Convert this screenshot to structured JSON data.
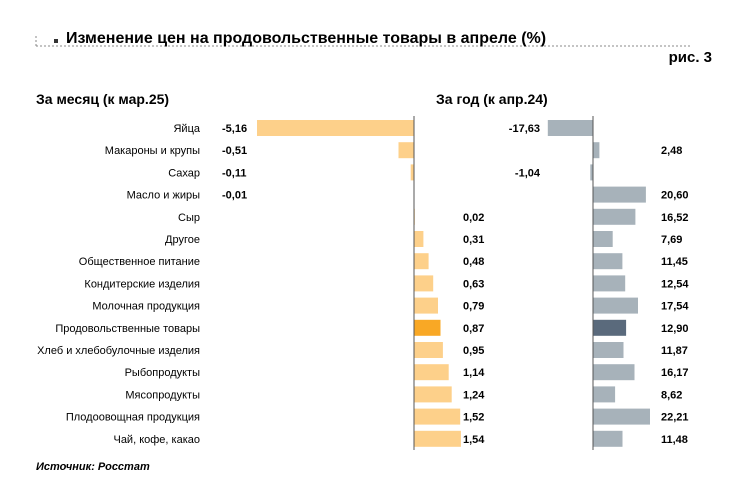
{
  "header": {
    "title": "Изменение цен на продовольственные товары в апреле (%)",
    "figure_label": "рис. 3"
  },
  "source": "Источник: Росстат",
  "colors": {
    "month_bar": "#fdd08a",
    "month_highlight": "#f9a825",
    "year_bar": "#a7b2ba",
    "year_highlight": "#5a6a7c",
    "axis": "#555555"
  },
  "chart_data": [
    {
      "type": "bar",
      "orientation": "horizontal",
      "title": "За месяц (к мар.25)",
      "categories": [
        "Яйца",
        "Макароны и крупы",
        "Сахар",
        "Масло и жиры",
        "Сыр",
        "Другое",
        "Общественное питание",
        "Кондитерские изделия",
        "Молочная продукция",
        "Продовольственные товары",
        "Хлеб и хлебобулочные изделия",
        "Рыбопродукты",
        "Мясопродукты",
        "Плодоовощная продукция",
        "Чай, кофе, какао"
      ],
      "values": [
        -5.16,
        -0.51,
        -0.11,
        -0.01,
        0.02,
        0.31,
        0.48,
        0.63,
        0.79,
        0.87,
        0.95,
        1.14,
        1.24,
        1.52,
        1.54
      ],
      "labels": [
        "-5,16",
        "-0,51",
        "-0,11",
        "-0,01",
        "0,02",
        "0,31",
        "0,48",
        "0,63",
        "0,79",
        "0,87",
        "0,95",
        "1,14",
        "1,24",
        "1,52",
        "1,54"
      ],
      "highlight": "Продовольственные товары",
      "xlim": [
        -5.16,
        1.54
      ]
    },
    {
      "type": "bar",
      "orientation": "horizontal",
      "title": "За год (к апр.24)",
      "categories": [
        "Яйца",
        "Макароны и крупы",
        "Сахар",
        "Масло и жиры",
        "Сыр",
        "Другое",
        "Общественное питание",
        "Кондитерские изделия",
        "Молочная продукция",
        "Продовольственные товары",
        "Хлеб и хлебобулочные изделия",
        "Рыбопродукты",
        "Мясопродукты",
        "Плодоовощная продукция",
        "Чай, кофе, какао"
      ],
      "values": [
        -17.63,
        2.48,
        -1.04,
        20.6,
        16.52,
        7.69,
        11.45,
        12.54,
        17.54,
        12.9,
        11.87,
        16.17,
        8.62,
        22.21,
        11.48
      ],
      "labels": [
        "-17,63",
        "2,48",
        "-1,04",
        "20,60",
        "16,52",
        "7,69",
        "11,45",
        "12,54",
        "17,54",
        "12,90",
        "11,87",
        "16,17",
        "8,62",
        "22,21",
        "11,48"
      ],
      "highlight": "Продовольственные товары",
      "xlim": [
        -17.63,
        22.21
      ]
    }
  ]
}
